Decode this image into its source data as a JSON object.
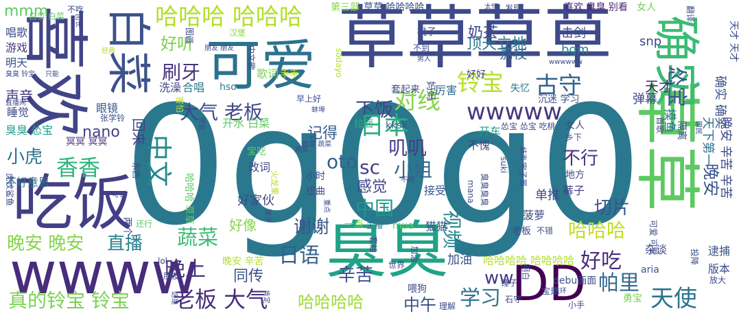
{
  "words": [
    {
      "text": "0g0g0",
      "color": "#2a788e"
    },
    {
      "text": "草草草草",
      "color": "#3e4a89"
    },
    {
      "text": "喜欢",
      "color": "#414487"
    },
    {
      "text": "白菜",
      "color": "#3b528b"
    },
    {
      "text": "可爱",
      "color": "#2c728e"
    },
    {
      "text": "吃饭",
      "color": "#433e85"
    },
    {
      "text": "wwww",
      "color": "#472d7b"
    },
    {
      "text": "臭臭",
      "color": "#20a386"
    },
    {
      "text": "DD",
      "color": "#440154"
    },
    {
      "text": "草草",
      "color": "#5ec962"
    },
    {
      "text": "确实",
      "color": "#3bbb75"
    },
    {
      "text": "哈哈哈 哈哈哈",
      "color": "#b5de2b"
    },
    {
      "text": "铃宝",
      "color": "#b5de2b"
    },
    {
      "text": "对线",
      "color": "#86d549"
    },
    {
      "text": "古守",
      "color": "#33638d"
    },
    {
      "text": "怂宝",
      "color": "#3b528b"
    },
    {
      "text": "大气 老板",
      "color": "#3e4a89"
    },
    {
      "text": "下饭",
      "color": "#404688"
    },
    {
      "text": "wwwww",
      "color": "#453781"
    },
    {
      "text": "刷牙",
      "color": "#46337e"
    },
    {
      "text": "好听",
      "color": "#7ad151"
    },
    {
      "text": "日本",
      "color": "#28ae80"
    },
    {
      "text": "中文",
      "color": "#238a8d"
    },
    {
      "text": "香香",
      "color": "#2fb47c"
    },
    {
      "text": "nano",
      "color": "#424086"
    },
    {
      "text": "小虎",
      "color": "#2c728e"
    },
    {
      "text": "晚安 晚安",
      "color": "#86d549"
    },
    {
      "text": "直播",
      "color": "#27808e"
    },
    {
      "text": "蔬菜",
      "color": "#3dbc74"
    },
    {
      "text": "晚上",
      "color": "#46327e"
    },
    {
      "text": "同传",
      "color": "#3b528b"
    },
    {
      "text": "日语",
      "color": "#355f8d"
    },
    {
      "text": "谢谢",
      "color": "#39568c"
    },
    {
      "text": "中国",
      "color": "#1f988b"
    },
    {
      "text": "视频",
      "color": "#25848e"
    },
    {
      "text": "哈哈哈",
      "color": "#c2df23"
    },
    {
      "text": "好吃",
      "color": "#472a7a"
    },
    {
      "text": "帕里",
      "color": "#31688e"
    },
    {
      "text": "天使",
      "color": "#2c728e"
    },
    {
      "text": "老板 大气",
      "color": "#472c7a"
    },
    {
      "text": "真的铃宝 铃宝",
      "color": "#7ad151"
    },
    {
      "text": "哈哈哈哈",
      "color": "#a0da39"
    },
    {
      "text": "辛苦",
      "color": "#3b528b"
    },
    {
      "text": "学习",
      "color": "#2c728e"
    },
    {
      "text": "中午",
      "color": "#3b528b"
    },
    {
      "text": "ww",
      "color": "#443a83"
    },
    {
      "text": "oto",
      "color": "#355f8d"
    },
    {
      "text": "sc",
      "color": "#424086"
    },
    {
      "text": "小姐",
      "color": "#31688e"
    },
    {
      "text": "叽叽",
      "color": "#433e85"
    },
    {
      "text": "感觉",
      "color": "#404688"
    },
    {
      "text": "不行",
      "color": "#46337e"
    },
    {
      "text": "切片",
      "color": "#3b528b"
    },
    {
      "text": "晚安",
      "color": "#39568c"
    },
    {
      "text": "记得",
      "color": "#365c8d"
    },
    {
      "text": "顶天立地",
      "color": "#2a788e"
    },
    {
      "text": "喜欢 臭臭 别看",
      "color": "#482878"
    },
    {
      "text": "女人",
      "color": "#6ece58"
    },
    {
      "text": "奶茶",
      "color": "#3e4a89"
    },
    {
      "text": "荔枝",
      "color": "#31688e"
    },
    {
      "text": "击剑",
      "color": "#3e4a89"
    },
    {
      "text": "bgm",
      "color": "#26828e"
    },
    {
      "text": "snp",
      "color": "#404688"
    },
    {
      "text": "天才",
      "color": "#482173"
    },
    {
      "text": "弹幕",
      "color": "#3e4a89"
    },
    {
      "text": "摸鱼",
      "color": "#2a788e"
    },
    {
      "text": "确实 确实",
      "color": "#3b528b"
    },
    {
      "text": "天下第一",
      "color": "#2c728e"
    },
    {
      "text": "mmm",
      "color": "#5ec962"
    },
    {
      "text": "唱歌",
      "color": "#3e4a89"
    },
    {
      "text": "游戏",
      "color": "#453781"
    },
    {
      "text": "明天",
      "color": "#3b528b"
    },
    {
      "text": "声音",
      "color": "#463480"
    },
    {
      "text": "睡觉",
      "color": "#3e4a89"
    },
    {
      "text": "臭臭 怂宝",
      "color": "#1fa088"
    },
    {
      "text": "冥冥 冥冥",
      "color": "#46327e"
    },
    {
      "text": "眼镜",
      "color": "#39568c"
    },
    {
      "text": "洗澡",
      "color": "#414487"
    },
    {
      "text": "合唱",
      "color": "#2a788e"
    },
    {
      "text": "hso",
      "color": "#2a788e"
    },
    {
      "text": "歌词",
      "color": "#7ad151"
    },
    {
      "text": "手手",
      "color": "#b5de2b"
    },
    {
      "text": "回来",
      "color": "#433e85"
    },
    {
      "text": "开水 白菜",
      "color": "#5ec962"
    },
    {
      "text": "拉面",
      "color": "#29af7f"
    },
    {
      "text": "kksk",
      "color": "#3b528b"
    },
    {
      "text": "开车",
      "color": "#1fa088"
    },
    {
      "text": "不愧",
      "color": "#404688"
    },
    {
      "text": "怂宝 怂宝 吃桃",
      "color": "#3e4a89"
    },
    {
      "text": "女人",
      "color": "#3e4a89"
    },
    {
      "text": "乡下",
      "color": "#3e4a89"
    },
    {
      "text": "好好",
      "color": "#404688"
    },
    {
      "text": "厉害",
      "color": "#31688e"
    },
    {
      "text": "套起来",
      "color": "#3e4a89"
    },
    {
      "text": "沉迷 学习",
      "color": "#3b528b"
    },
    {
      "text": "失忆",
      "color": "#2a788e"
    },
    {
      "text": "早上好",
      "color": "#3e4a89"
    },
    {
      "text": "直播间",
      "color": "#3b528b"
    },
    {
      "text": "张学铃",
      "color": "#3b528b"
    },
    {
      "text": "不好意思",
      "color": "#2c728e"
    },
    {
      "text": "好家伙",
      "color": "#3e4a89"
    },
    {
      "text": "好像",
      "color": "#86d549"
    },
    {
      "text": "改词",
      "color": "#404688"
    },
    {
      "text": "宝吃",
      "color": "#5ec962"
    },
    {
      "text": "扭曲",
      "color": "#3e4a89"
    },
    {
      "text": "小时",
      "color": "#3e4a89"
    },
    {
      "text": "接受",
      "color": "#3b528b"
    },
    {
      "text": "单推",
      "color": "#3e4a89"
    },
    {
      "text": "菠萝",
      "color": "#3e4a89"
    },
    {
      "text": "裤子",
      "color": "#433e85"
    },
    {
      "text": "地方",
      "color": "#3e4a89"
    },
    {
      "text": "一点",
      "color": "#86d549"
    },
    {
      "text": "主播",
      "color": "#2a788e"
    },
    {
      "text": "mua",
      "color": "#5ec962"
    },
    {
      "text": "猫猫",
      "color": "#3b528b"
    },
    {
      "text": "老板",
      "color": "#3e4a89"
    },
    {
      "text": "不错",
      "color": "#3b528b"
    },
    {
      "text": "加油",
      "color": "#3b528b"
    },
    {
      "text": "哈哈哈哈 哈哈哈哈",
      "color": "#b5de2b"
    },
    {
      "text": "晚安 辛苦",
      "color": "#b5de2b"
    },
    {
      "text": "lol",
      "color": "#3e4a89"
    },
    {
      "text": "朋友",
      "color": "#3e4a89"
    },
    {
      "text": "喂狗",
      "color": "#3e4a89"
    },
    {
      "text": "理解",
      "color": "#3e4a89"
    },
    {
      "text": "debu画面",
      "color": "#3b528b"
    },
    {
      "text": "aria",
      "color": "#3b528b"
    },
    {
      "text": "杂谈",
      "color": "#3e4a89"
    },
    {
      "text": "版本",
      "color": "#3e4a89"
    },
    {
      "text": "逮捕",
      "color": "#3b528b"
    },
    {
      "text": "放大",
      "color": "#3e4a89"
    },
    {
      "text": "勇宝",
      "color": "#7ad151"
    },
    {
      "text": "小手",
      "color": "#3e4a89"
    },
    {
      "text": "铁环",
      "color": "#3e4a89"
    },
    {
      "text": "还行",
      "color": "#5ec962"
    },
    {
      "text": "不吃",
      "color": "#3e4a89"
    },
    {
      "text": "第三部",
      "color": "#86d549"
    },
    {
      "text": "草草 哈哈哈哈",
      "color": "#3b528b"
    },
    {
      "text": "太怪",
      "color": "#3e4a89"
    },
    {
      "text": "发现",
      "color": "#3e4a89"
    },
    {
      "text": "白菜 白菜",
      "color": "#5ec962"
    },
    {
      "text": "桃子",
      "color": "#3e4a89"
    },
    {
      "text": "不到",
      "color": "#3e4a89"
    },
    {
      "text": "男人",
      "color": "#3e4a89"
    },
    {
      "text": "只能",
      "color": "#3e4a89"
    },
    {
      "text": "翻译",
      "color": "#3e4a89"
    },
    {
      "text": "天才 天才",
      "color": "#3e4a89"
    },
    {
      "text": "团长",
      "color": "#3e4a89"
    },
    {
      "text": "汉堡",
      "color": "#86d549"
    },
    {
      "text": "经典",
      "color": "#b5de2b"
    },
    {
      "text": "朋友 朋友",
      "color": "#3e4a89"
    },
    {
      "text": "臭臭 铃宝",
      "color": "#3e4a89"
    },
    {
      "text": "wwwwww",
      "color": "#3e4a89"
    },
    {
      "text": "图画",
      "color": "#3e4a89"
    },
    {
      "text": "中文歌",
      "color": "#3e4a89"
    },
    {
      "text": "sodayo",
      "color": "#b5de2b"
    },
    {
      "text": "妈妈",
      "color": "#3e4a89"
    },
    {
      "text": "蚌埠",
      "color": "#3e4a89"
    },
    {
      "text": "害怕",
      "color": "#c2df23"
    },
    {
      "text": "便宜",
      "color": "#3e4a89"
    },
    {
      "text": "首歌",
      "color": "#3e4a89"
    },
    {
      "text": "国民",
      "color": "#3e4a89"
    },
    {
      "text": "隔离",
      "color": "#3e4a89"
    },
    {
      "text": "晚安 辛苦 辛苦",
      "color": "#3e4a89"
    },
    {
      "text": "可爱 可爱",
      "color": "#3e4a89"
    },
    {
      "text": "投降",
      "color": "#3e4a89"
    },
    {
      "text": "宝是",
      "color": "#3e4a89"
    },
    {
      "text": "明白",
      "color": "#3e4a89"
    },
    {
      "text": "锤子",
      "color": "#3e4a89"
    },
    {
      "text": "石守",
      "color": "#3e4a89"
    },
    {
      "text": "肯定",
      "color": "#3e4a89"
    },
    {
      "text": "这是",
      "color": "#3e4a89"
    },
    {
      "text": "虎纹鲨鱼",
      "color": "#3e4a89"
    },
    {
      "text": "考试",
      "color": "#3e4a89"
    },
    {
      "text": "两个",
      "color": "#3e4a89"
    },
    {
      "text": "哈哈哈 草草",
      "color": "#5ec962"
    },
    {
      "text": "火龙果",
      "color": "#b5de2b"
    },
    {
      "text": "蔬菜 蔬菜",
      "color": "#3e4a89"
    },
    {
      "text": "suki",
      "color": "#3e4a89"
    },
    {
      "text": "mana",
      "color": "#3e4a89"
    },
    {
      "text": "臭臭臭臭",
      "color": "#3e4a89"
    },
    {
      "text": "宇子哥",
      "color": "#3e4a89"
    },
    {
      "text": "结束",
      "color": "#3e4a89"
    },
    {
      "text": "东西",
      "color": "#3e4a89"
    },
    {
      "text": "不用",
      "color": "#3e4a89"
    },
    {
      "text": "孩子",
      "color": "#3e4a89"
    },
    {
      "text": "重点",
      "color": "#3e4a89"
    },
    {
      "text": "世界",
      "color": "#3e4a89"
    },
    {
      "text": "套娃",
      "color": "#3e4a89"
    },
    {
      "text": "加油",
      "color": "#3e4a89"
    },
    {
      "text": "蔬菜",
      "color": "#3e4a89"
    }
  ]
}
